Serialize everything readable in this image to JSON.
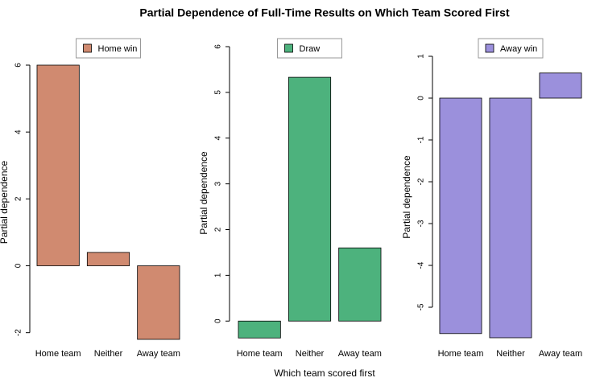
{
  "title": "Partial Dependence of Full-Time Results on Which Team Scored First",
  "x_label": "Which team scored first",
  "chart_data": [
    {
      "type": "bar",
      "y_label": "Partial dependence",
      "categories": [
        "Home team",
        "Neither",
        "Away team"
      ],
      "series": [
        {
          "name": "Home win",
          "color": "#d08a70",
          "values": [
            6.0,
            0.4,
            -2.2
          ]
        }
      ],
      "ylim": [
        -2.2,
        6
      ],
      "yticks": [
        -2,
        0,
        2,
        4,
        6
      ],
      "legend": "top"
    },
    {
      "type": "bar",
      "y_label": "Partial dependence",
      "categories": [
        "Home team",
        "Neither",
        "Away team"
      ],
      "series": [
        {
          "name": "Draw",
          "color": "#4db27d",
          "values": [
            -0.37,
            5.33,
            1.6
          ]
        }
      ],
      "ylim": [
        -0.4,
        6
      ],
      "yticks": [
        0,
        1,
        2,
        3,
        4,
        5,
        6
      ],
      "legend": "top"
    },
    {
      "type": "bar",
      "y_label": "Partial dependence",
      "categories": [
        "Home team",
        "Neither",
        "Away team"
      ],
      "series": [
        {
          "name": "Away win",
          "color": "#9b90dc",
          "values": [
            -5.63,
            -5.73,
            0.6
          ]
        }
      ],
      "ylim": [
        -5.73,
        1
      ],
      "yticks": [
        -5,
        -4,
        -3,
        -2,
        -1,
        0,
        1
      ],
      "legend": "top"
    }
  ]
}
